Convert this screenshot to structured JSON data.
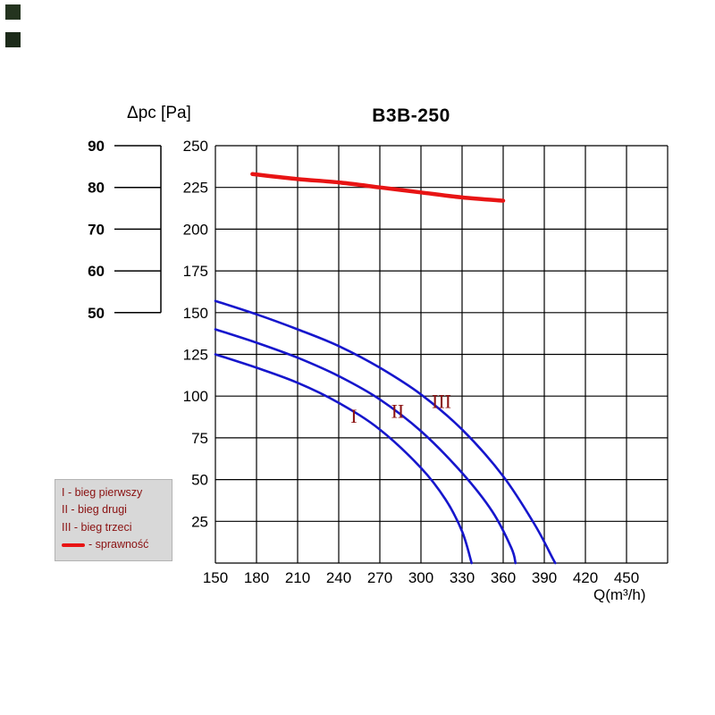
{
  "title": "B3B-250",
  "chart_data": {
    "type": "line",
    "title": "B3B-250",
    "xlabel": "Q(m³/h)",
    "ylabel": "Δpc [Pa]",
    "xlim": [
      150,
      480
    ],
    "ylim": [
      0,
      250
    ],
    "grid": "on",
    "x_tick_step": 30,
    "y_tick_step": 25,
    "x_ticks": [
      "150",
      "180",
      "210",
      "240",
      "270",
      "300",
      "330",
      "360",
      "390",
      "420",
      "450"
    ],
    "y_ticks": [
      {
        "label": "250",
        "pa": 250
      },
      {
        "label": "225",
        "pa": 225
      },
      {
        "label": "200",
        "pa": 200
      },
      {
        "label": "175",
        "pa": 175
      },
      {
        "label": "150",
        "pa": 150
      },
      {
        "label": "125",
        "pa": 125
      },
      {
        "label": "100",
        "pa": 100
      },
      {
        "label": "75",
        "pa": 75
      },
      {
        "label": "50",
        "pa": 50
      },
      {
        "label": "25",
        "pa": 25
      }
    ],
    "efficiency_scale": {
      "note": "secondary left scale in % mapped onto 150-250 Pa band",
      "ticks": [
        {
          "label": "90",
          "pa": 250
        },
        {
          "label": "80",
          "pa": 225
        },
        {
          "label": "70",
          "pa": 200
        },
        {
          "label": "60",
          "pa": 175
        },
        {
          "label": "50",
          "pa": 150
        }
      ]
    },
    "colors": {
      "curve_blue": "#1616cc",
      "efficiency_red": "#e81414",
      "grid_black": "#000000",
      "roman_maroon": "#8b1212"
    },
    "series": [
      {
        "name": "bieg-I",
        "label": "I",
        "color": "#1616cc",
        "width": 2.6,
        "points": [
          [
            150,
            125
          ],
          [
            180,
            117
          ],
          [
            210,
            108
          ],
          [
            240,
            96
          ],
          [
            270,
            80
          ],
          [
            300,
            57
          ],
          [
            318,
            38
          ],
          [
            330,
            19
          ],
          [
            337,
            0
          ]
        ]
      },
      {
        "name": "bieg-II",
        "label": "II",
        "color": "#1616cc",
        "width": 2.6,
        "points": [
          [
            150,
            140
          ],
          [
            180,
            132
          ],
          [
            210,
            123
          ],
          [
            240,
            112
          ],
          [
            270,
            98
          ],
          [
            300,
            79
          ],
          [
            330,
            54
          ],
          [
            352,
            31
          ],
          [
            366,
            9
          ],
          [
            369,
            0
          ]
        ]
      },
      {
        "name": "bieg-III",
        "label": "III",
        "color": "#1616cc",
        "width": 2.6,
        "points": [
          [
            150,
            157
          ],
          [
            180,
            149
          ],
          [
            210,
            140
          ],
          [
            240,
            130
          ],
          [
            270,
            117
          ],
          [
            300,
            101
          ],
          [
            330,
            80
          ],
          [
            360,
            52
          ],
          [
            383,
            23
          ],
          [
            396,
            3
          ],
          [
            398,
            0
          ]
        ]
      },
      {
        "name": "sprawnosc",
        "label": "sprawność",
        "color": "#e81414",
        "width": 4.5,
        "points": [
          [
            177,
            233
          ],
          [
            210,
            230
          ],
          [
            240,
            228
          ],
          [
            270,
            225
          ],
          [
            300,
            222
          ],
          [
            330,
            219
          ],
          [
            360,
            217
          ]
        ]
      }
    ],
    "curve_labels": [
      {
        "text": "I",
        "q": 251,
        "pa": 84
      },
      {
        "text": "II",
        "q": 283,
        "pa": 87
      },
      {
        "text": "III",
        "q": 315,
        "pa": 93
      }
    ]
  },
  "legend": {
    "background": "#d8d8d8",
    "items": [
      {
        "type": "text",
        "label": "I - bieg pierwszy"
      },
      {
        "type": "text",
        "label": "II - bieg drugi"
      },
      {
        "type": "text",
        "label": "III - bieg trzeci"
      },
      {
        "type": "line",
        "label": "- sprawność"
      }
    ]
  }
}
